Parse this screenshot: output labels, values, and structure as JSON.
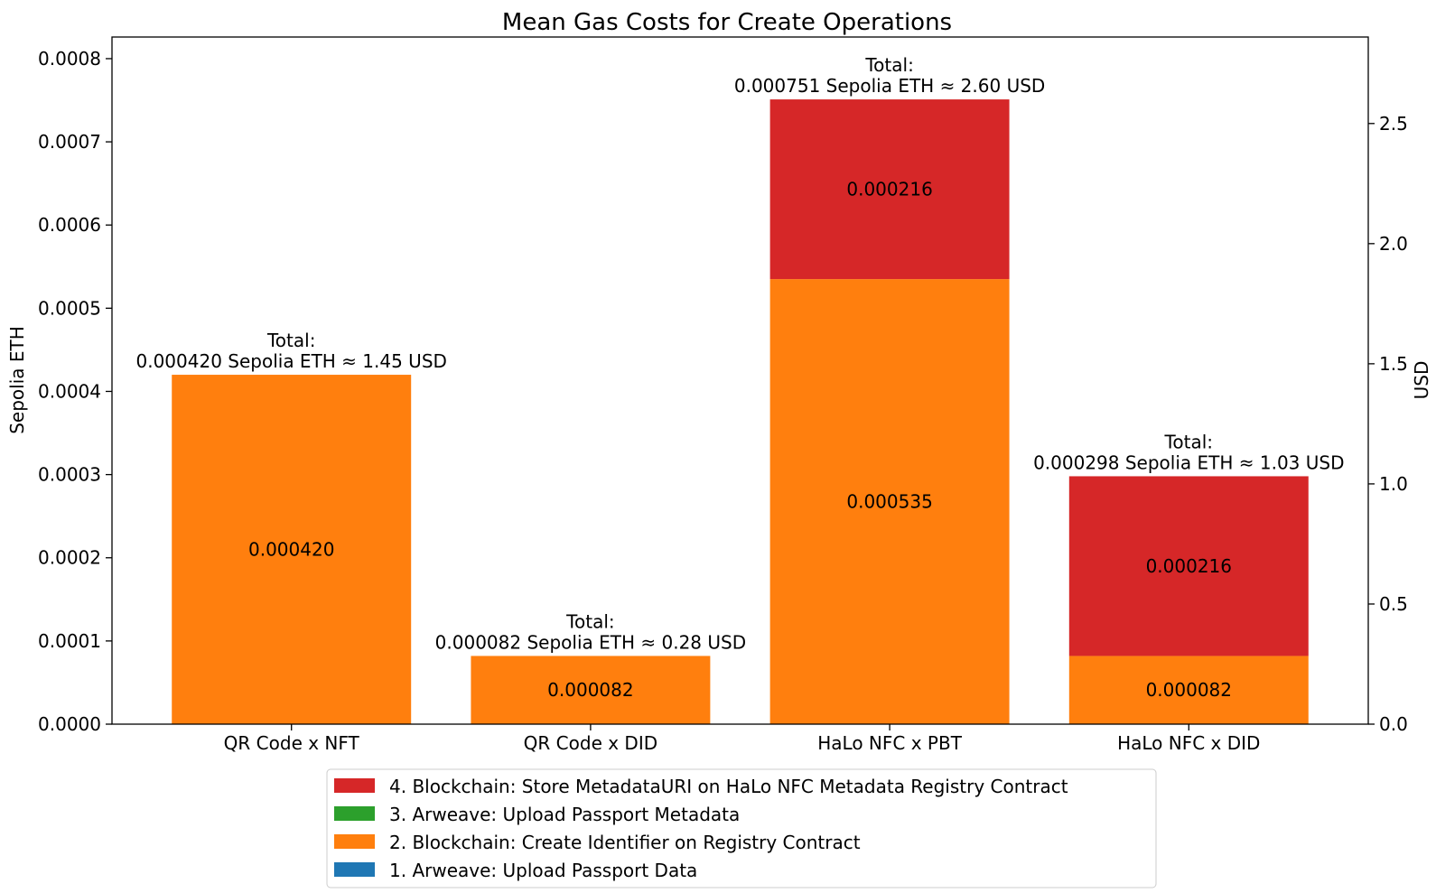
{
  "chart_data": {
    "type": "bar",
    "stacked": true,
    "title": "Mean Gas Costs for Create Operations",
    "xlabel": "",
    "ylabel": "Sepolia ETH",
    "y2label": "USD",
    "categories": [
      "QR Code x NFT",
      "QR Code x DID",
      "HaLo NFC x PBT",
      "HaLo NFC x DID"
    ],
    "series": [
      {
        "name": "1. Arweave: Upload Passport Data",
        "color": "#1f77b4",
        "values": [
          0,
          0,
          0,
          0
        ],
        "labels": [
          "",
          "",
          "",
          ""
        ]
      },
      {
        "name": "2. Blockchain: Create Identifier on Registry Contract",
        "color": "#ff7f0e",
        "values": [
          0.00042,
          8.2e-05,
          0.000535,
          8.2e-05
        ],
        "labels": [
          "0.000420",
          "0.000082",
          "0.000535",
          "0.000082"
        ]
      },
      {
        "name": "3. Arweave: Upload Passport Metadata",
        "color": "#2ca02c",
        "values": [
          0,
          0,
          0,
          0
        ],
        "labels": [
          "",
          "",
          "",
          ""
        ]
      },
      {
        "name": "4. Blockchain: Store MetadataURI on HaLo NFC Metadata Registry Contract",
        "color": "#d62728",
        "values": [
          0,
          0,
          0.000216,
          0.000216
        ],
        "labels": [
          "",
          "",
          "0.000216",
          "0.000216"
        ]
      }
    ],
    "totals": [
      {
        "title": "Total:",
        "text": "0.000420 Sepolia ETH ≈ 1.45 USD",
        "value": 0.00042
      },
      {
        "title": "Total:",
        "text": "0.000082 Sepolia ETH ≈ 0.28 USD",
        "value": 8.2e-05
      },
      {
        "title": "Total:",
        "text": "0.000751 Sepolia ETH ≈ 2.60 USD",
        "value": 0.000751
      },
      {
        "title": "Total:",
        "text": "0.000298 Sepolia ETH ≈ 1.03 USD",
        "value": 0.000298
      }
    ],
    "ylim": [
      0,
      0.000826
    ],
    "yticks": [
      "0.0000",
      "0.0001",
      "0.0002",
      "0.0003",
      "0.0004",
      "0.0005",
      "0.0006",
      "0.0007",
      "0.0008"
    ],
    "y2lim": [
      0,
      2.86
    ],
    "y2ticks": [
      "0.0",
      "0.5",
      "1.0",
      "1.5",
      "2.0",
      "2.5"
    ],
    "legend_order": [
      3,
      2,
      1,
      0
    ],
    "legend_position": "bottom-center",
    "grid": false
  }
}
